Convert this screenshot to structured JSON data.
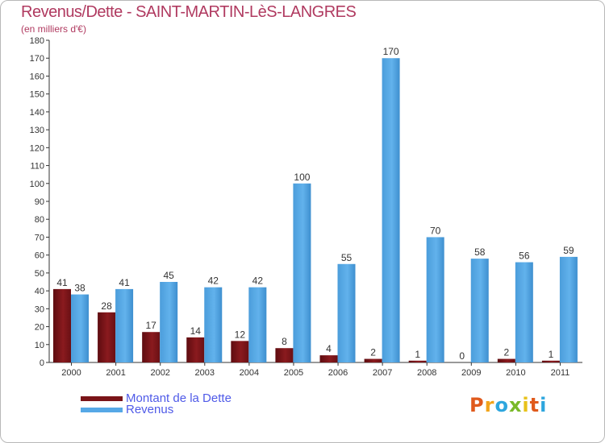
{
  "title": "Revenus/Dette - SAINT-MARTIN-LèS-LANGRES",
  "subtitle": "(en milliers d'€)",
  "colors": {
    "title": "#b03a60",
    "legend_text": "#4f5ae8",
    "dette": "#7a1418",
    "revenus": "#56a8e6",
    "axis": "#333333"
  },
  "legend": {
    "dette": "Montant de la Dette",
    "revenus": "Revenus"
  },
  "logo": {
    "letters": [
      "P",
      "r",
      "o",
      "x",
      "i",
      "t",
      "i"
    ],
    "colors": [
      "#e05a1c",
      "#f2a41a",
      "#2ea6de",
      "#7ab929",
      "#e8c21a",
      "#e05a1c",
      "#2ea6de"
    ]
  },
  "chart_data": {
    "type": "bar",
    "title": "Revenus/Dette - SAINT-MARTIN-LèS-LANGRES",
    "subtitle": "(en milliers d'€)",
    "categories": [
      "2000",
      "2001",
      "2002",
      "2003",
      "2004",
      "2005",
      "2006",
      "2007",
      "2008",
      "2009",
      "2010",
      "2011"
    ],
    "series": [
      {
        "name": "Montant de la Dette",
        "values": [
          41,
          28,
          17,
          14,
          12,
          8,
          4,
          2,
          1,
          0,
          2,
          1
        ]
      },
      {
        "name": "Revenus",
        "values": [
          38,
          41,
          45,
          42,
          42,
          100,
          55,
          170,
          70,
          58,
          56,
          59
        ]
      }
    ],
    "ylim": [
      0,
      180
    ],
    "ytick_step": 10,
    "grid": false,
    "legend_position": "bottom-left"
  }
}
